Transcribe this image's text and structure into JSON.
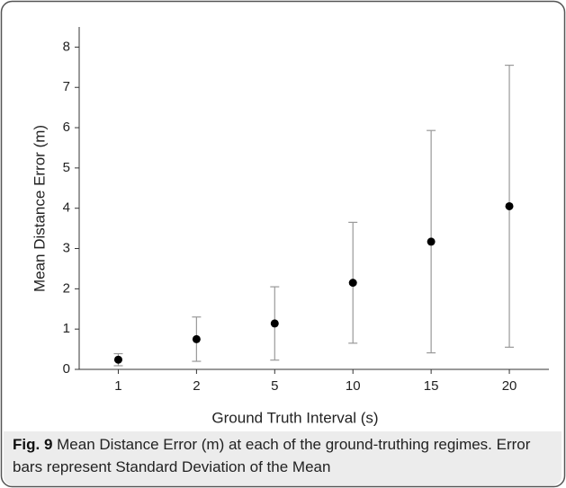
{
  "chart_data": {
    "type": "scatter",
    "x_label": "Ground Truth Interval (s)",
    "y_label": "Mean Distance Error (m)",
    "categories": [
      "1",
      "2",
      "5",
      "10",
      "15",
      "20"
    ],
    "values": [
      0.24,
      0.75,
      1.14,
      2.15,
      3.17,
      4.05
    ],
    "errors": [
      0.15,
      0.55,
      0.91,
      1.5,
      2.76,
      3.5
    ],
    "color": "#000000",
    "error_color": "#999999",
    "ylim": [
      0,
      8.5
    ],
    "yticks": [
      0,
      1,
      2,
      3,
      4,
      5,
      6,
      7,
      8
    ],
    "grid": false,
    "caption_label": "Fig. 9",
    "caption": "Mean Distance Error (m) at each of the ground-truthing regimes. Error bars represent Standard Deviation of the Mean"
  }
}
